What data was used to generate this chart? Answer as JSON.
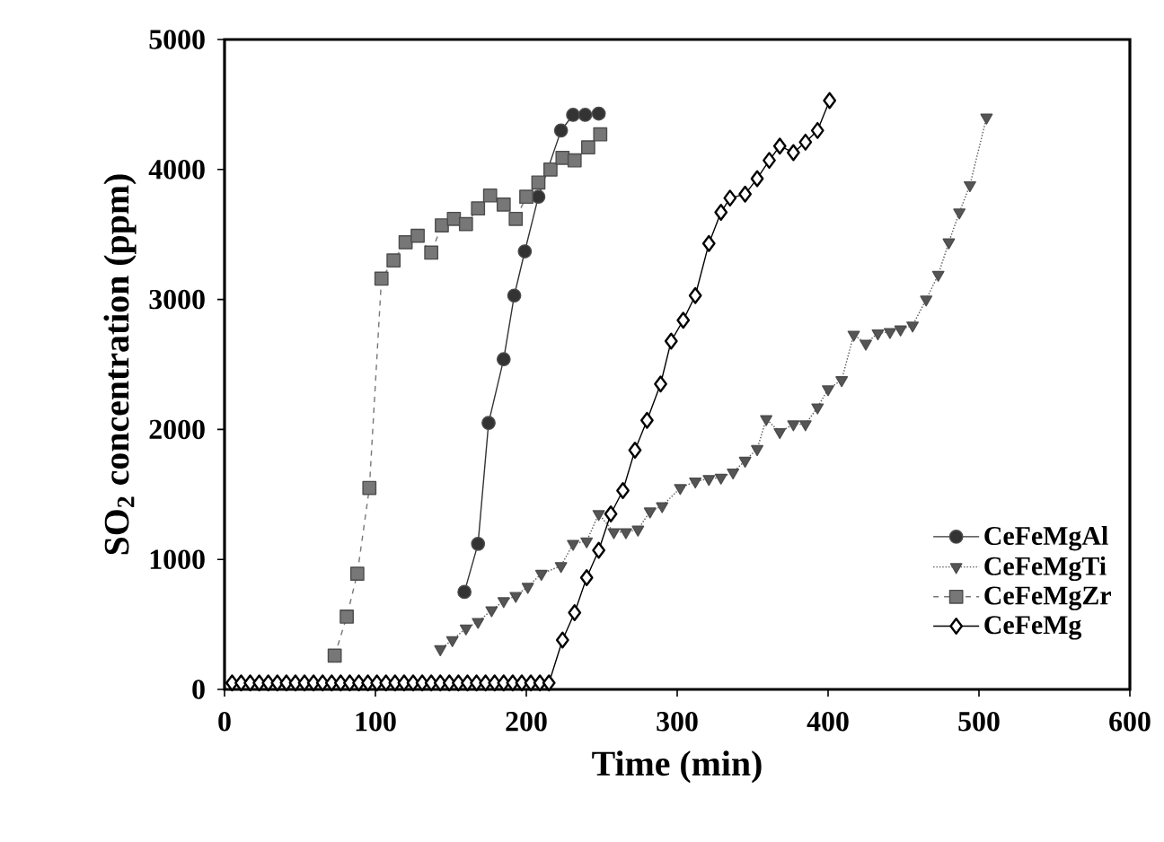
{
  "chart_data": {
    "type": "line",
    "xlabel": "Time (min)",
    "ylabel": "SO$_{2}$ concentration (ppm)",
    "xlim": [
      0,
      600
    ],
    "ylim": [
      0,
      5000
    ],
    "xticks": [
      0,
      100,
      200,
      300,
      400,
      500,
      600
    ],
    "yticks": [
      0,
      1000,
      2000,
      3000,
      4000,
      5000
    ],
    "grid": false,
    "legend": "bottom right",
    "series": [
      {
        "name": "CeFeMgAl",
        "color": "#333333",
        "marker": "circle",
        "line_style": "solid",
        "x": [
          159,
          168,
          175,
          185,
          192,
          199,
          208,
          223,
          231,
          239,
          248
        ],
        "values": [
          750,
          1120,
          2050,
          2540,
          3030,
          3370,
          3790,
          4300,
          4420,
          4420,
          4430
        ]
      },
      {
        "name": "CeFeMgTi",
        "color": "#555555",
        "marker": "triangle",
        "line_style": "dotted",
        "x": [
          143,
          151,
          160,
          168,
          177,
          185,
          193,
          201,
          210,
          223,
          231,
          240,
          248,
          258,
          266,
          274,
          282,
          290,
          302,
          312,
          321,
          329,
          337,
          345,
          353,
          359,
          368,
          377,
          385,
          393,
          400,
          409,
          417,
          425,
          433,
          441,
          448,
          456,
          465,
          473,
          480,
          487,
          494,
          505
        ],
        "values": [
          310,
          380,
          470,
          520,
          610,
          680,
          720,
          790,
          890,
          950,
          1120,
          1140,
          1350,
          1210,
          1210,
          1230,
          1370,
          1410,
          1550,
          1600,
          1620,
          1630,
          1670,
          1760,
          1850,
          2080,
          1980,
          2040,
          2040,
          2170,
          2310,
          2380,
          2730,
          2660,
          2740,
          2750,
          2770,
          2800,
          3000,
          3190,
          3440,
          3670,
          3880,
          4400
        ]
      },
      {
        "name": "CeFeMgZr",
        "color": "#777777",
        "marker": "square",
        "line_style": "dashed",
        "x": [
          73,
          81,
          88,
          96,
          104,
          112,
          120,
          128,
          137,
          144,
          152,
          160,
          168,
          176,
          185,
          193,
          200,
          208,
          216,
          224,
          232,
          241,
          249
        ],
        "values": [
          260,
          560,
          890,
          1550,
          3160,
          3300,
          3440,
          3490,
          3360,
          3570,
          3620,
          3580,
          3700,
          3800,
          3730,
          3620,
          3790,
          3900,
          4000,
          4090,
          4070,
          4170,
          4270
        ]
      },
      {
        "name": "CeFeMg",
        "color": "#000000",
        "marker": "diamond",
        "line_style": "solid",
        "x": [
          5,
          11,
          17,
          23,
          29,
          35,
          41,
          47,
          53,
          59,
          65,
          71,
          77,
          83,
          89,
          95,
          101,
          107,
          113,
          119,
          125,
          131,
          137,
          143,
          149,
          155,
          161,
          167,
          173,
          179,
          185,
          191,
          197,
          203,
          209,
          215,
          224,
          232,
          240,
          248,
          256,
          264,
          272,
          280,
          289,
          296,
          304,
          312,
          321,
          329,
          335,
          345,
          353,
          361,
          368,
          377,
          385,
          393,
          401
        ],
        "values": [
          50,
          50,
          50,
          50,
          50,
          50,
          50,
          50,
          50,
          50,
          50,
          50,
          50,
          50,
          50,
          50,
          50,
          50,
          50,
          50,
          50,
          50,
          50,
          50,
          50,
          50,
          50,
          50,
          50,
          50,
          50,
          50,
          50,
          50,
          50,
          50,
          380,
          590,
          860,
          1070,
          1350,
          1530,
          1840,
          2070,
          2350,
          2680,
          2840,
          3030,
          3430,
          3670,
          3780,
          3810,
          3930,
          4070,
          4180,
          4130,
          4210,
          4300,
          4530
        ]
      }
    ]
  }
}
